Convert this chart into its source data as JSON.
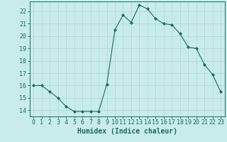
{
  "x": [
    0,
    1,
    2,
    3,
    4,
    5,
    6,
    7,
    8,
    9,
    10,
    11,
    12,
    13,
    14,
    15,
    16,
    17,
    18,
    19,
    20,
    21,
    22,
    23
  ],
  "y": [
    16.0,
    16.0,
    15.5,
    15.0,
    14.3,
    13.9,
    13.9,
    13.9,
    13.9,
    16.1,
    20.5,
    21.7,
    21.1,
    22.5,
    22.2,
    21.4,
    21.0,
    20.9,
    20.2,
    19.1,
    19.0,
    17.7,
    16.9,
    15.5
  ],
  "line_color": "#1a6b5a",
  "marker": "D",
  "marker_size": 2.0,
  "bg_color": "#c8ecec",
  "grid_color": "#b8d8d8",
  "xlabel": "Humidex (Indice chaleur)",
  "ylabel_ticks": [
    14,
    15,
    16,
    17,
    18,
    19,
    20,
    21,
    22
  ],
  "ylim": [
    13.5,
    22.8
  ],
  "xlim": [
    -0.5,
    23.5
  ],
  "tick_color": "#1a6b5a",
  "label_fontsize": 7,
  "tick_fontsize": 6
}
